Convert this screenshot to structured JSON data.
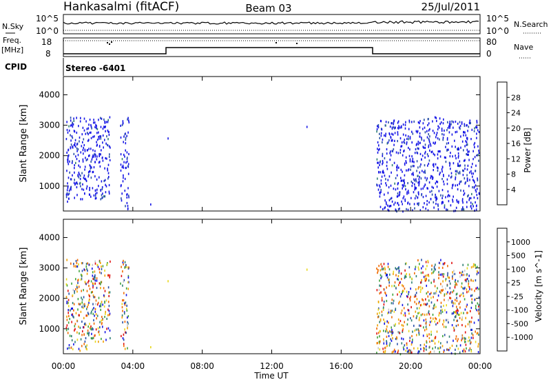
{
  "header": {
    "station": "Hankasalmi (fitACF)",
    "beam": "Beam 03",
    "date": "25/Jul/2011"
  },
  "status_labels": {
    "nsky": "N.Sky",
    "nsearch": "N.Search",
    "freq": "Freq.",
    "freq_unit": "[MHz]",
    "nave": "Nave",
    "cpid": "CPID",
    "program": "Stereo -6401"
  },
  "status_ticks": {
    "noise_top": "10^5",
    "noise_bottom": "10^0",
    "freq_top": "18",
    "freq_bottom": "8",
    "nave_top": "80",
    "nave_bottom": "0"
  },
  "xaxis": {
    "label": "Time UT",
    "ticks": [
      "00:00",
      "04:00",
      "08:00",
      "12:00",
      "16:00",
      "20:00",
      "00:00"
    ]
  },
  "colors": {
    "power": [
      "#1515e6",
      "#2850a8",
      "#2f7f72",
      "#3fa33a",
      "#e8d71c",
      "#f0a000",
      "#f06a00",
      "#e01010"
    ],
    "velocity": [
      "#e01010",
      "#f06a00",
      "#f0a000",
      "#e8d71c",
      "#c8c8c8",
      "#3fa33a",
      "#2f7f72",
      "#2850a8",
      "#1515e6"
    ]
  },
  "chart_data": [
    {
      "type": "heatmap",
      "name": "power-panel",
      "ylabel": "Slant Range [km]",
      "xlabel": "",
      "xlim_hours": [
        0,
        24
      ],
      "ylim_km": [
        180,
        4600
      ],
      "yticks": [
        "1000",
        "2000",
        "3000",
        "4000"
      ],
      "colorbar": {
        "label": "Power [dB]",
        "ticks": [
          "4",
          "8",
          "12",
          "16",
          "20",
          "24",
          "28"
        ],
        "range": [
          0,
          32
        ]
      },
      "echo_clusters": [
        {
          "start": "00:08",
          "end": "01:20",
          "range_km": [
            500,
            3300
          ],
          "mean_value": 4
        },
        {
          "start": "01:20",
          "end": "02:40",
          "range_km": [
            600,
            3300
          ],
          "mean_value": 4
        },
        {
          "start": "03:15",
          "end": "03:45",
          "range_km": [
            200,
            3300
          ],
          "mean_value": 4
        },
        {
          "start": "18:00",
          "end": "20:00",
          "range_km": [
            200,
            3200
          ],
          "mean_value": 4
        },
        {
          "start": "20:00",
          "end": "22:00",
          "range_km": [
            200,
            3300
          ],
          "mean_value": 4
        },
        {
          "start": "22:00",
          "end": "23:55",
          "range_km": [
            200,
            3200
          ],
          "mean_value": 4
        }
      ]
    },
    {
      "type": "heatmap",
      "name": "velocity-panel",
      "ylabel": "Slant Range [km]",
      "xlabel": "Time UT",
      "xlim_hours": [
        0,
        24
      ],
      "ylim_km": [
        180,
        4600
      ],
      "yticks": [
        "1000",
        "2000",
        "3000",
        "4000"
      ],
      "colorbar": {
        "label": "Velocity [m s^-1]",
        "ticks": [
          "1000",
          "500",
          "100",
          "25",
          "-25",
          "-100",
          "-500",
          "-1000"
        ]
      },
      "echo_clusters": [
        {
          "start": "00:08",
          "end": "01:20",
          "range_km": [
            300,
            3300
          ],
          "mean_value": 0
        },
        {
          "start": "01:20",
          "end": "02:40",
          "range_km": [
            600,
            3300
          ],
          "mean_value": 0
        },
        {
          "start": "03:15",
          "end": "03:45",
          "range_km": [
            200,
            3300
          ],
          "mean_value": 0
        },
        {
          "start": "18:00",
          "end": "20:00",
          "range_km": [
            200,
            3200
          ],
          "mean_value": 0
        },
        {
          "start": "20:00",
          "end": "22:00",
          "range_km": [
            200,
            3300
          ],
          "mean_value": 0
        },
        {
          "start": "22:00",
          "end": "23:55",
          "range_km": [
            200,
            3200
          ],
          "mean_value": 0
        }
      ]
    }
  ]
}
